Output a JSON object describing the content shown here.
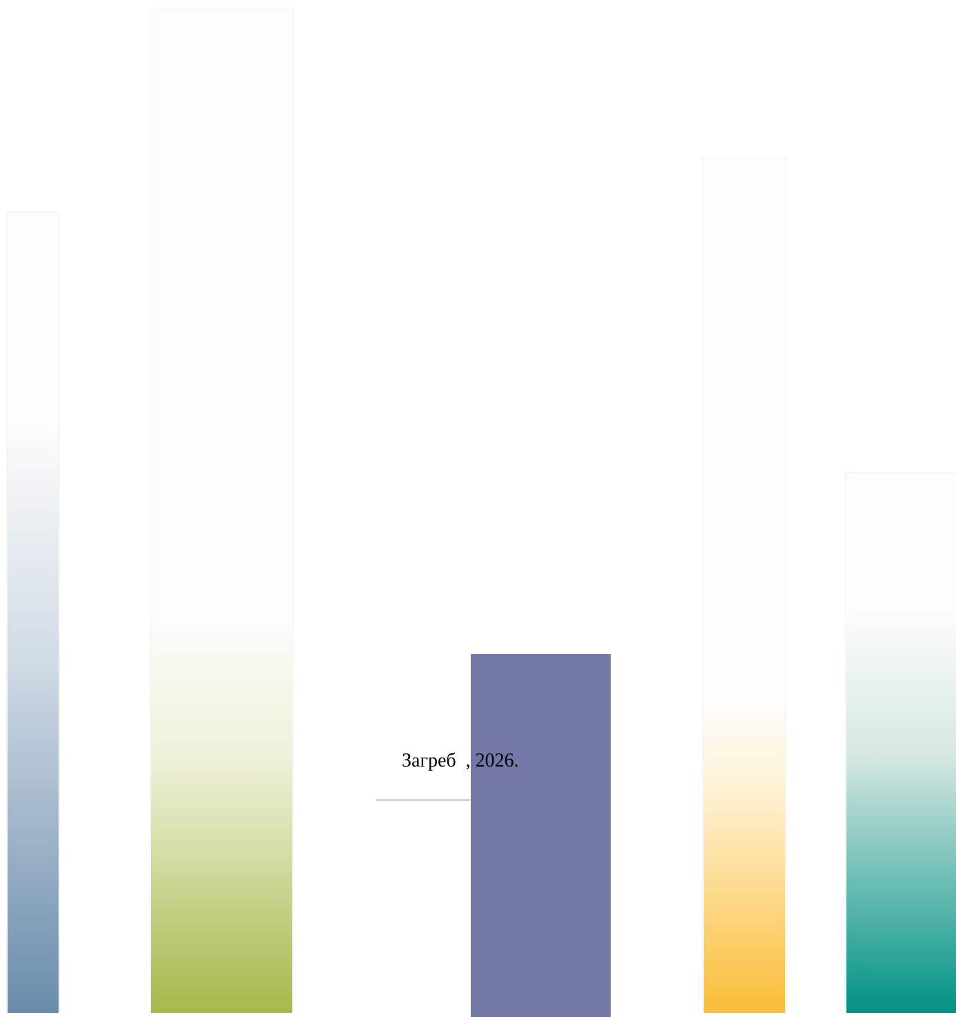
{
  "cover": {
    "city": "Загреб",
    "date_suffix": ", 2026."
  },
  "decor": {
    "bars": [
      {
        "name": "blue-bar",
        "color": "#6a8cab"
      },
      {
        "name": "green-bar",
        "color": "#a5b94a"
      },
      {
        "name": "purple-bar",
        "color": "#7378a6"
      },
      {
        "name": "yellow-bar",
        "color": "#fbbd37"
      },
      {
        "name": "teal-bar",
        "color": "#009284"
      }
    ]
  }
}
